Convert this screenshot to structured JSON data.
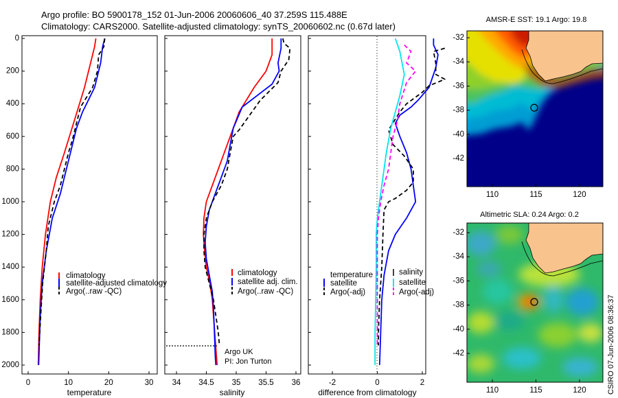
{
  "header": {
    "line1": "Argo profile: BO 5900178_152 01-Jun-2006 20060606_40 37.259S 115.488E",
    "line2": "Climatology: CARS2000. Satellite-adjusted climatology: synTS_20060602.nc (0.67d later)"
  },
  "colors": {
    "climatology": "#ff0000",
    "satellite": "#0000ff",
    "argo": "#000000",
    "sal_satellite": "#00e5ee",
    "sal_argo": "#ff00ff",
    "land": "#f9c38e"
  },
  "chart_data": [
    {
      "type": "line",
      "name": "temperature-panel",
      "xlabel": "temperature",
      "xlim": [
        -2,
        32
      ],
      "xticks": [
        0,
        10,
        20,
        30
      ],
      "ylim": [
        0,
        2050
      ],
      "yticks": [
        0,
        200,
        400,
        600,
        800,
        1000,
        1200,
        1400,
        1600,
        1800,
        2000
      ],
      "y_reversed": true,
      "legend": [
        "climatology",
        "satellite-adjusted climatology",
        "Argo(..raw -QC)"
      ],
      "series": [
        {
          "name": "climatology",
          "style": "solid",
          "color": "#ff0000",
          "points": [
            [
              16.8,
              0
            ],
            [
              16.5,
              50
            ],
            [
              15.5,
              150
            ],
            [
              14,
              300
            ],
            [
              11.5,
              500
            ],
            [
              9,
              700
            ],
            [
              7,
              850
            ],
            [
              5.5,
              1000
            ],
            [
              4.3,
              1200
            ],
            [
              3.5,
              1400
            ],
            [
              3.0,
              1600
            ],
            [
              2.7,
              1800
            ],
            [
              2.5,
              2000
            ]
          ]
        },
        {
          "name": "satellite-adjusted climatology",
          "style": "solid",
          "color": "#0000ff",
          "points": [
            [
              19,
              0
            ],
            [
              18.5,
              50
            ],
            [
              18,
              150
            ],
            [
              16.5,
              300
            ],
            [
              13.5,
              450
            ],
            [
              12,
              550
            ],
            [
              10.5,
              700
            ],
            [
              9.5,
              800
            ],
            [
              8,
              950
            ],
            [
              6,
              1100
            ],
            [
              4.5,
              1300
            ],
            [
              3.5,
              1500
            ],
            [
              3,
              1700
            ],
            [
              2.6,
              2000
            ]
          ]
        },
        {
          "name": "Argo(..raw -QC)",
          "style": "dashed",
          "color": "#000000",
          "points": [
            [
              19,
              0
            ],
            [
              18.8,
              50
            ],
            [
              17.5,
              100
            ],
            [
              17.2,
              200
            ],
            [
              16,
              300
            ],
            [
              13,
              420
            ],
            [
              12,
              520
            ],
            [
              11,
              620
            ],
            [
              10,
              700
            ],
            [
              9,
              800
            ],
            [
              8,
              900
            ],
            [
              6.5,
              1000
            ],
            [
              5,
              1150
            ],
            [
              4.5,
              1300
            ],
            [
              3.6,
              1500
            ],
            [
              3.1,
              1700
            ],
            [
              2.7,
              1880
            ]
          ]
        }
      ]
    },
    {
      "type": "line",
      "name": "salinity-panel",
      "xlabel": "salinity",
      "xlim": [
        33.7,
        36.1
      ],
      "xticks": [
        34,
        34.5,
        35,
        35.5,
        36
      ],
      "ylim": [
        0,
        2050
      ],
      "y_reversed": true,
      "legend": [
        "climatology",
        "satellite adj. clim.",
        "Argo(..raw -QC)"
      ],
      "annotation": [
        "Argo UK",
        "PI: Jon Turton"
      ],
      "reference_depth": 1880,
      "series": [
        {
          "name": "climatology",
          "style": "solid",
          "color": "#ff0000",
          "points": [
            [
              35.6,
              0
            ],
            [
              35.6,
              100
            ],
            [
              35.5,
              200
            ],
            [
              35.3,
              300
            ],
            [
              35.05,
              450
            ],
            [
              34.9,
              600
            ],
            [
              34.8,
              700
            ],
            [
              34.7,
              800
            ],
            [
              34.6,
              900
            ],
            [
              34.5,
              1000
            ],
            [
              34.46,
              1100
            ],
            [
              34.45,
              1200
            ],
            [
              34.47,
              1300
            ],
            [
              34.5,
              1400
            ],
            [
              34.56,
              1500
            ],
            [
              34.6,
              1600
            ],
            [
              34.62,
              1700
            ],
            [
              34.64,
              1800
            ],
            [
              34.66,
              1900
            ],
            [
              34.68,
              2000
            ]
          ]
        },
        {
          "name": "satellite adj. clim.",
          "style": "solid",
          "color": "#0000ff",
          "points": [
            [
              35.75,
              0
            ],
            [
              35.75,
              60
            ],
            [
              35.7,
              150
            ],
            [
              35.72,
              200
            ],
            [
              35.6,
              280
            ],
            [
              35.1,
              420
            ],
            [
              34.95,
              550
            ],
            [
              34.9,
              650
            ],
            [
              34.85,
              750
            ],
            [
              34.75,
              850
            ],
            [
              34.65,
              950
            ],
            [
              34.55,
              1050
            ],
            [
              34.5,
              1150
            ],
            [
              34.48,
              1250
            ],
            [
              34.5,
              1350
            ],
            [
              34.55,
              1450
            ],
            [
              34.6,
              1550
            ],
            [
              34.62,
              1650
            ],
            [
              34.63,
              1750
            ],
            [
              34.64,
              1850
            ],
            [
              34.65,
              1950
            ],
            [
              34.66,
              2000
            ]
          ]
        },
        {
          "name": "Argo(..raw -QC)",
          "style": "dashed",
          "color": "#000000",
          "points": [
            [
              35.78,
              0
            ],
            [
              35.8,
              30
            ],
            [
              35.9,
              60
            ],
            [
              35.88,
              130
            ],
            [
              35.75,
              200
            ],
            [
              35.7,
              270
            ],
            [
              35.4,
              380
            ],
            [
              35.05,
              560
            ],
            [
              34.95,
              600
            ],
            [
              34.9,
              700
            ],
            [
              34.85,
              800
            ],
            [
              34.75,
              900
            ],
            [
              34.6,
              1000
            ],
            [
              34.5,
              1100
            ],
            [
              34.46,
              1200
            ],
            [
              34.46,
              1300
            ],
            [
              34.48,
              1400
            ],
            [
              34.55,
              1500
            ],
            [
              34.62,
              1600
            ],
            [
              34.66,
              1700
            ],
            [
              34.7,
              1800
            ],
            [
              34.72,
              1880
            ]
          ]
        }
      ]
    },
    {
      "type": "line",
      "name": "difference-panel",
      "xlabel": "difference from climatology",
      "xlim": [
        -3,
        3
      ],
      "xticks": [
        -2,
        0,
        2
      ],
      "ylim": [
        0,
        2050
      ],
      "y_reversed": true,
      "legend_left": [
        "temperature",
        "satellite",
        "Argo(-adj)"
      ],
      "legend_right": [
        "salinity",
        "satellite",
        "Argo(-adj)"
      ],
      "series": [
        {
          "name": "temperature satellite",
          "style": "solid",
          "color": "#0000ff",
          "points": [
            [
              2.5,
              0
            ],
            [
              2.5,
              40
            ],
            [
              2.7,
              100
            ],
            [
              2.6,
              180
            ],
            [
              2.3,
              300
            ],
            [
              1.8,
              380
            ],
            [
              1.5,
              420
            ],
            [
              1.0,
              470
            ],
            [
              0.8,
              520
            ],
            [
              1.0,
              600
            ],
            [
              1.3,
              700
            ],
            [
              1.5,
              800
            ],
            [
              1.6,
              900
            ],
            [
              1.7,
              1000
            ],
            [
              1.3,
              1100
            ],
            [
              0.8,
              1200
            ],
            [
              0.5,
              1300
            ],
            [
              0.3,
              1450
            ],
            [
              0.2,
              1600
            ],
            [
              0.15,
              1800
            ],
            [
              0.1,
              2000
            ]
          ]
        },
        {
          "name": "temperature Argo(-adj)",
          "style": "dashed",
          "color": "#000000",
          "points": [
            [
              3,
              60
            ],
            [
              2.5,
              80
            ],
            [
              2.6,
              150
            ],
            [
              2.6,
              220
            ],
            [
              3,
              250
            ],
            [
              2.3,
              290
            ],
            [
              2.0,
              330
            ],
            [
              1.3,
              400
            ],
            [
              1.0,
              450
            ],
            [
              0.5,
              560
            ],
            [
              0.7,
              650
            ],
            [
              1.2,
              720
            ],
            [
              1.6,
              800
            ],
            [
              1.6,
              880
            ],
            [
              1.3,
              930
            ],
            [
              0.8,
              980
            ],
            [
              0.5,
              1000
            ],
            [
              0.3,
              1050
            ],
            [
              0.25,
              1200
            ],
            [
              0.2,
              1400
            ],
            [
              0.1,
              1600
            ],
            [
              0.05,
              1800
            ],
            [
              0.05,
              1880
            ]
          ]
        },
        {
          "name": "salinity satellite",
          "style": "solid",
          "color": "#00e5ee",
          "points": [
            [
              0.8,
              0
            ],
            [
              1.0,
              80
            ],
            [
              1.1,
              150
            ],
            [
              1.2,
              220
            ],
            [
              1.0,
              350
            ],
            [
              0.9,
              400
            ],
            [
              0.8,
              450
            ],
            [
              0.6,
              550
            ],
            [
              0.4,
              700
            ],
            [
              0.3,
              800
            ],
            [
              0.2,
              900
            ],
            [
              0.1,
              1000
            ],
            [
              0,
              1100
            ],
            [
              -0.05,
              1200
            ],
            [
              -0.05,
              1400
            ],
            [
              -0.07,
              1600
            ],
            [
              -0.1,
              1800
            ],
            [
              -0.1,
              2000
            ]
          ]
        },
        {
          "name": "salinity Argo(-adj)",
          "style": "dashed",
          "color": "#ff00ff",
          "points": [
            [
              1.2,
              40
            ],
            [
              1.5,
              80
            ],
            [
              1.3,
              150
            ],
            [
              1.7,
              200
            ],
            [
              1.3,
              270
            ],
            [
              1.0,
              400
            ],
            [
              0.9,
              500
            ],
            [
              0.7,
              600
            ],
            [
              0.6,
              700
            ],
            [
              0.5,
              800
            ],
            [
              0.3,
              900
            ],
            [
              0.15,
              1000
            ],
            [
              0.05,
              1100
            ],
            [
              0,
              1200
            ],
            [
              0,
              1400
            ],
            [
              0,
              1600
            ],
            [
              0,
              1800
            ],
            [
              0,
              1880
            ]
          ]
        }
      ]
    },
    {
      "type": "heatmap",
      "name": "sst-map",
      "title": "AMSR-E SST: 19.1 Argo: 19.8",
      "xlim": [
        108,
        122
      ],
      "ylim": [
        -43.5,
        -31.5
      ],
      "xticks": [
        110,
        115,
        120
      ],
      "yticks": [
        -32,
        -34,
        -36,
        -38,
        -40,
        -42
      ],
      "marker": [
        115.488,
        -37.259
      ]
    },
    {
      "type": "heatmap",
      "name": "sla-map",
      "title": "Altimetric SLA: 0.24 Argo: 0.2",
      "xlim": [
        108,
        122
      ],
      "ylim": [
        -43.5,
        -31.5
      ],
      "xticks": [
        110,
        115,
        120
      ],
      "yticks": [
        -32,
        -34,
        -36,
        -38,
        -40,
        -42
      ],
      "marker": [
        115.488,
        -37.259
      ]
    }
  ],
  "side_label": "CSIRO 07-Jun-2006 08:36:37"
}
